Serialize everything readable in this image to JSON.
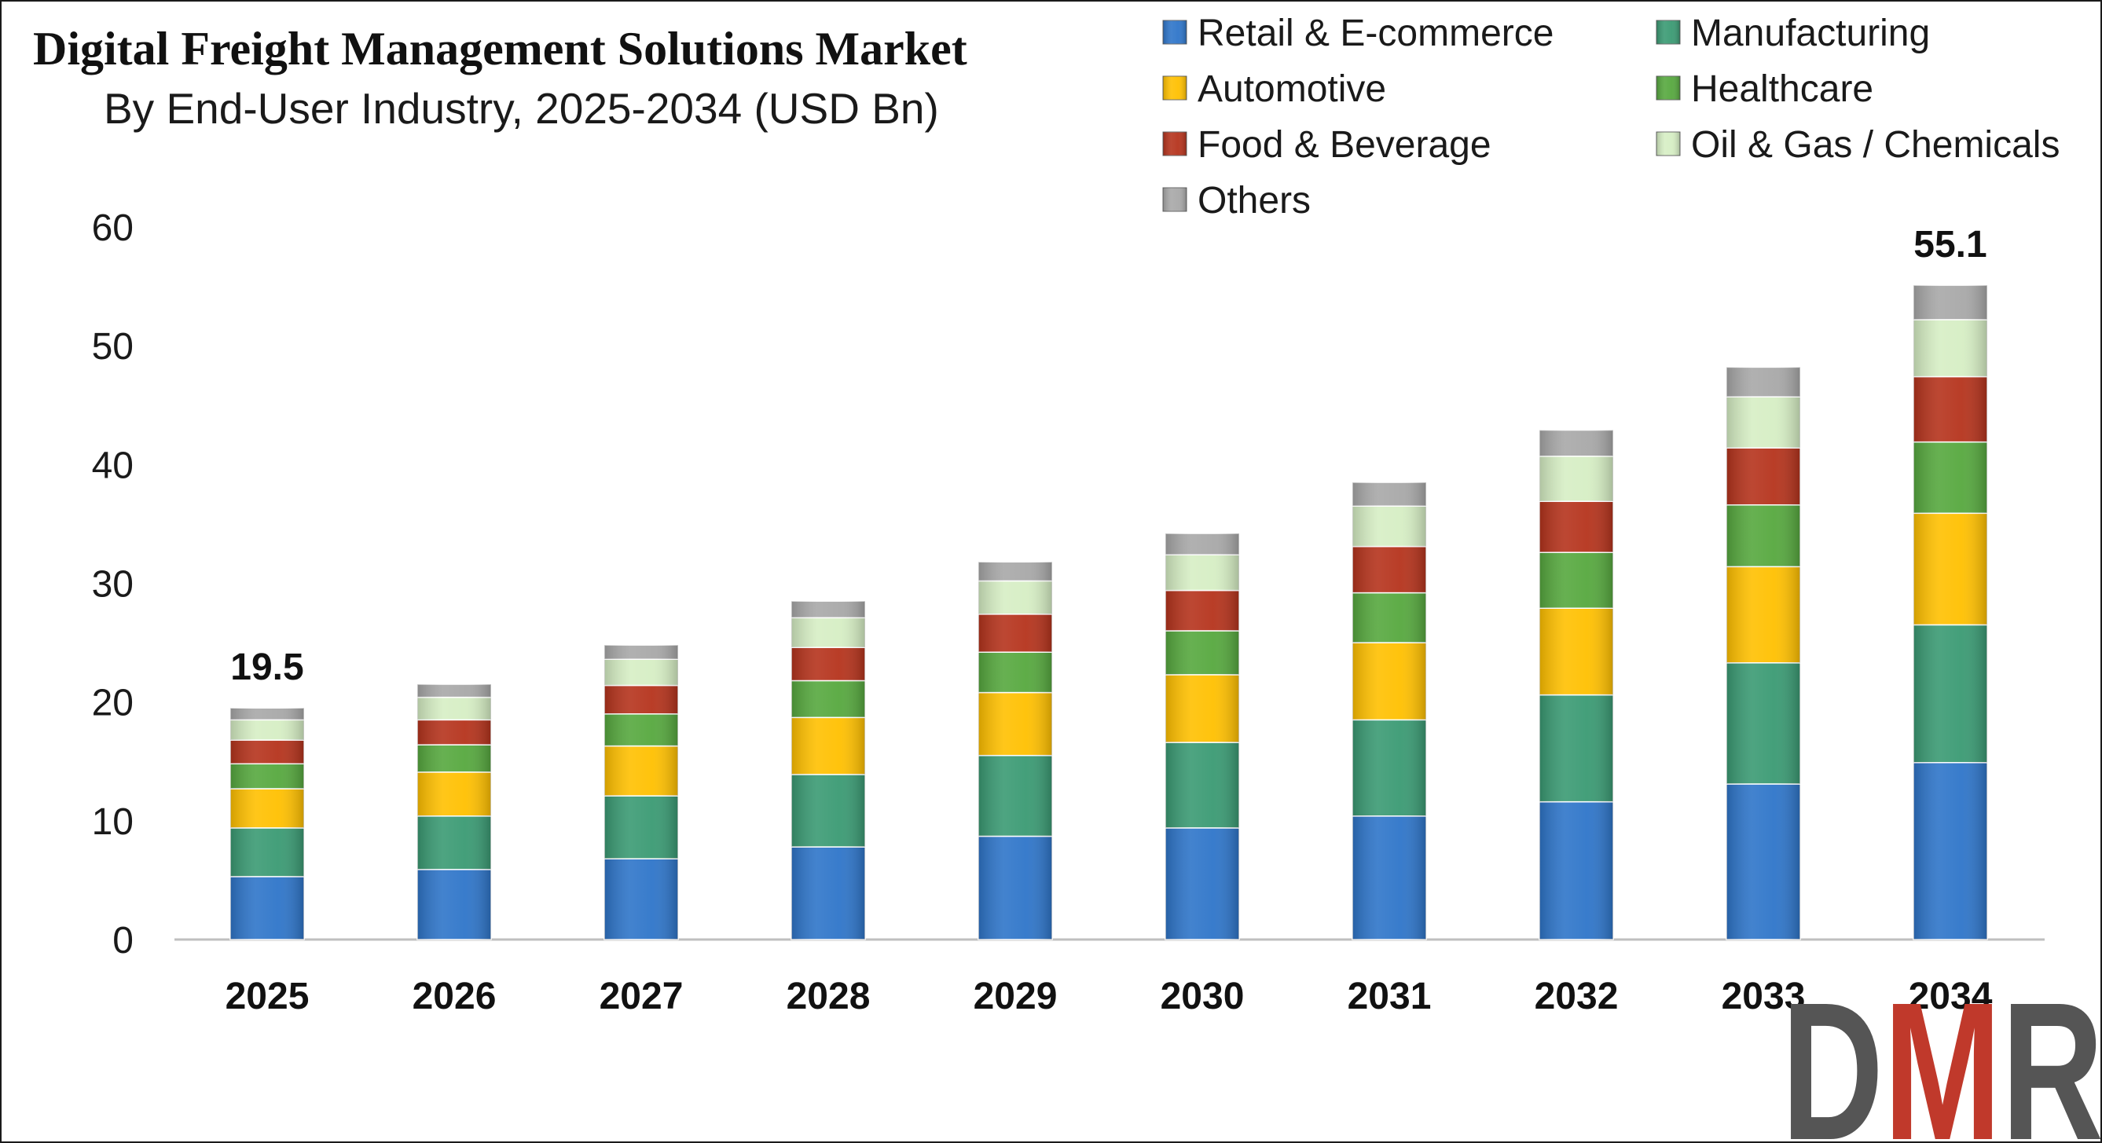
{
  "chart_data": {
    "type": "bar",
    "stacked": true,
    "title": "Digital Freight Management Solutions Market",
    "subtitle": "By End-User Industry, 2025-2034 (USD Bn)",
    "categories": [
      "2025",
      "2026",
      "2027",
      "2028",
      "2029",
      "2030",
      "2031",
      "2032",
      "2033",
      "2034"
    ],
    "ylim": [
      0,
      60
    ],
    "yticks": [
      0,
      10,
      20,
      30,
      40,
      50,
      60
    ],
    "grid": false,
    "legend_position": "top-right",
    "series": [
      {
        "name": "Retail & E-commerce",
        "color": "#2E75C9",
        "values": [
          5.3,
          5.9,
          6.8,
          7.8,
          8.7,
          9.4,
          10.4,
          11.6,
          13.1,
          14.9
        ]
      },
      {
        "name": "Manufacturing",
        "color": "#3A9A73",
        "values": [
          4.1,
          4.5,
          5.3,
          6.1,
          6.8,
          7.2,
          8.1,
          9.0,
          10.2,
          11.6
        ]
      },
      {
        "name": "Automotive",
        "color": "#FFC000",
        "values": [
          3.3,
          3.7,
          4.2,
          4.8,
          5.3,
          5.7,
          6.5,
          7.3,
          8.1,
          9.4
        ]
      },
      {
        "name": "Healthcare",
        "color": "#56A83E",
        "values": [
          2.1,
          2.3,
          2.7,
          3.1,
          3.4,
          3.7,
          4.2,
          4.7,
          5.2,
          6.0
        ]
      },
      {
        "name": "Food & Beverage",
        "color": "#B5331C",
        "values": [
          2.0,
          2.1,
          2.4,
          2.8,
          3.2,
          3.4,
          3.9,
          4.3,
          4.8,
          5.5
        ]
      },
      {
        "name": "Oil & Gas / Chemicals",
        "color": "#D6EEC4",
        "values": [
          1.7,
          1.9,
          2.2,
          2.5,
          2.8,
          3.0,
          3.4,
          3.8,
          4.3,
          4.8
        ]
      },
      {
        "name": "Others",
        "color": "#A8A8A8",
        "values": [
          1.0,
          1.1,
          1.2,
          1.4,
          1.6,
          1.8,
          2.0,
          2.2,
          2.5,
          2.9
        ]
      }
    ],
    "total_labels": [
      {
        "category": "2025",
        "text": "19.5",
        "value": 19.5
      },
      {
        "category": "2034",
        "text": "55.1",
        "value": 55.1
      }
    ]
  },
  "logo": {
    "text": "DMR",
    "colors": [
      "#555555",
      "#C0392B",
      "#555555"
    ]
  }
}
